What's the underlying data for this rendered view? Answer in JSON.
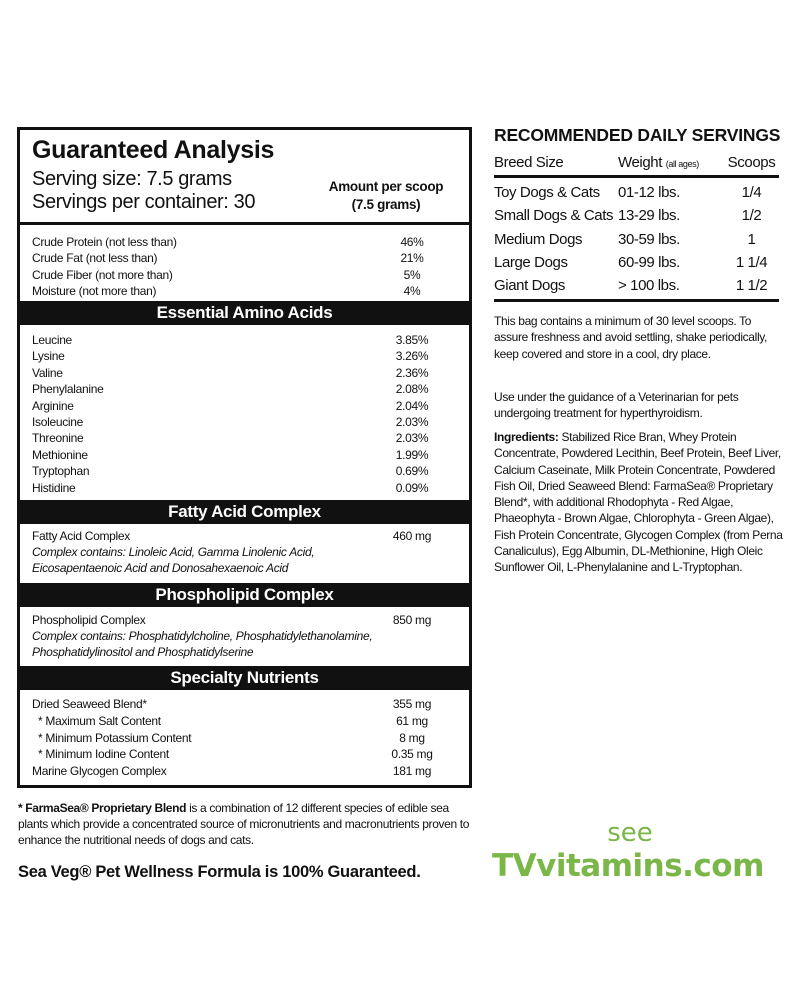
{
  "label": {
    "title": "Guaranteed Analysis",
    "serving_size": "Serving size: 7.5 grams",
    "servings_per_container": "Servings per container: 30",
    "amount_header_1": "Amount per scoop",
    "amount_header_2": "(7.5 grams)",
    "guaranteed": [
      {
        "name": "Crude Protein (not less than)",
        "value": "46%"
      },
      {
        "name": "Crude Fat (not less than)",
        "value": "21%"
      },
      {
        "name": "Crude Fiber (not more than)",
        "value": "5%"
      },
      {
        "name": "Moisture (not more than)",
        "value": "4%"
      }
    ],
    "amino_title": "Essential Amino Acids",
    "amino": [
      {
        "name": "Leucine",
        "value": "3.85%"
      },
      {
        "name": "Lysine",
        "value": "3.26%"
      },
      {
        "name": "Valine",
        "value": "2.36%"
      },
      {
        "name": "Phenylalanine",
        "value": "2.08%"
      },
      {
        "name": "Arginine",
        "value": "2.04%"
      },
      {
        "name": "Isoleucine",
        "value": "2.03%"
      },
      {
        "name": "Threonine",
        "value": "2.03%"
      },
      {
        "name": "Methionine",
        "value": "1.99%"
      },
      {
        "name": "Tryptophan",
        "value": "0.69%"
      },
      {
        "name": "Histidine",
        "value": "0.09%"
      }
    ],
    "fatty_title": "Fatty Acid Complex",
    "fatty": {
      "name": "Fatty Acid Complex",
      "value": "460 mg",
      "note_1": "Complex contains: Linoleic Acid, Gamma Linolenic Acid,",
      "note_2": "Eicosapentaenoic Acid and Donosahexaenoic Acid"
    },
    "phospho_title": "Phospholipid Complex",
    "phospho": {
      "name": "Phospholipid Complex",
      "value": "850 mg",
      "note_1": "Complex contains: Phosphatidylcholine, Phosphatidylethanolamine,",
      "note_2": "Phosphatidylinositol and Phosphatidylserine"
    },
    "specialty_title": "Specialty Nutrients",
    "specialty": [
      {
        "name": "Dried Seaweed Blend*",
        "value": "355 mg"
      },
      {
        "name": "* Maximum Salt Content",
        "value": "61 mg"
      },
      {
        "name": "* Minimum Potassium Content",
        "value": "8 mg"
      },
      {
        "name": "* Minimum Iodine Content",
        "value": "0.35 mg"
      },
      {
        "name": "Marine Glycogen Complex",
        "value": "181 mg"
      }
    ]
  },
  "servings": {
    "title": "RECOMMENDED DAILY SERVINGS",
    "headers": {
      "breed": "Breed Size",
      "weight": "Weight",
      "weight_note": "(all ages)",
      "scoops": "Scoops"
    },
    "rows": [
      {
        "breed": "Toy Dogs & Cats",
        "weight": "01-12 lbs.",
        "scoops": "1/4"
      },
      {
        "breed": "Small Dogs & Cats",
        "weight": "13-29 lbs.",
        "scoops": "1/2"
      },
      {
        "breed": "Medium Dogs",
        "weight": "30-59 lbs.",
        "scoops": "1"
      },
      {
        "breed": "Large Dogs",
        "weight": "60-99 lbs.",
        "scoops": "1 1/4"
      },
      {
        "breed": "Giant Dogs",
        "weight": "> 100 lbs.",
        "scoops": "1 1/2"
      }
    ],
    "storage": "This bag contains a minimum of 30 level scoops. To assure freshness and avoid settling, shake periodically, keep covered and store in a cool, dry place.",
    "vet": "Use under the guidance of a Veterinarian for pets undergoing treatment for hyperthyroidism.",
    "ingredients_label": "Ingredients:",
    "ingredients": "Stabilized Rice Bran, Whey Protein Concentrate, Powdered Lecithin, Beef Protein, Beef Liver, Calcium Caseinate, Milk Protein Concentrate, Powdered Fish Oil, Dried Seaweed Blend: FarmaSea® Proprietary Blend*, with additional Rhodophyta - Red Algae, Phaeophyta - Brown Algae, Chlorophyta - Green Algae), Fish Protein Concentrate, Glycogen Complex (from Perna Canaliculus), Egg Albumin, DL-Methionine, High Oleic Sunflower Oil, L-Phenylalanine and L-Tryptophan."
  },
  "footnote": {
    "bold": "* FarmaSea® Proprietary Blend",
    "text": " is a combination of 12 different species of edible sea plants which provide a concentrated source of micronutrients and macronutrients proven to enhance the nutritional needs of dogs and cats."
  },
  "guarantee": "Sea Veg® Pet Wellness Formula is 100% Guaranteed.",
  "promo": {
    "see": "see",
    "site": "TVvitamins.com",
    "color": "#7ab648"
  }
}
